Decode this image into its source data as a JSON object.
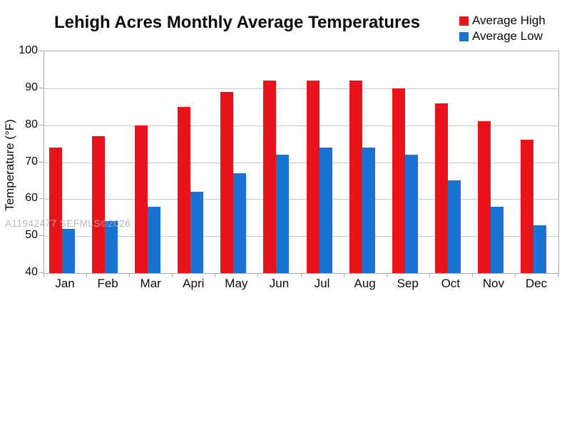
{
  "title": "Lehigh Acres Monthly Average Temperatures",
  "watermark": "A11942477 SEFMLS©2026",
  "chart_data": {
    "type": "bar",
    "title": "Lehigh Acres Monthly Average Temperatures",
    "categories": [
      "Jan",
      "Feb",
      "Mar",
      "Apri",
      "May",
      "Jun",
      "Jul",
      "Aug",
      "Sep",
      "Oct",
      "Nov",
      "Dec"
    ],
    "series": [
      {
        "name": "Average High",
        "color": "#e8141b",
        "values": [
          74,
          77,
          80,
          85,
          89,
          92,
          92,
          92,
          90,
          86,
          81,
          76
        ]
      },
      {
        "name": "Average Low",
        "color": "#1a73d2",
        "values": [
          52,
          54,
          58,
          62,
          67,
          72,
          74,
          74,
          72,
          65,
          58,
          53
        ]
      }
    ],
    "xlabel": "",
    "ylabel": "Temperature (°F)",
    "ylim": [
      40,
      100
    ],
    "yticks": [
      100,
      90,
      80,
      70,
      60,
      50,
      40
    ],
    "grid": true,
    "legend_position": "top-right"
  }
}
